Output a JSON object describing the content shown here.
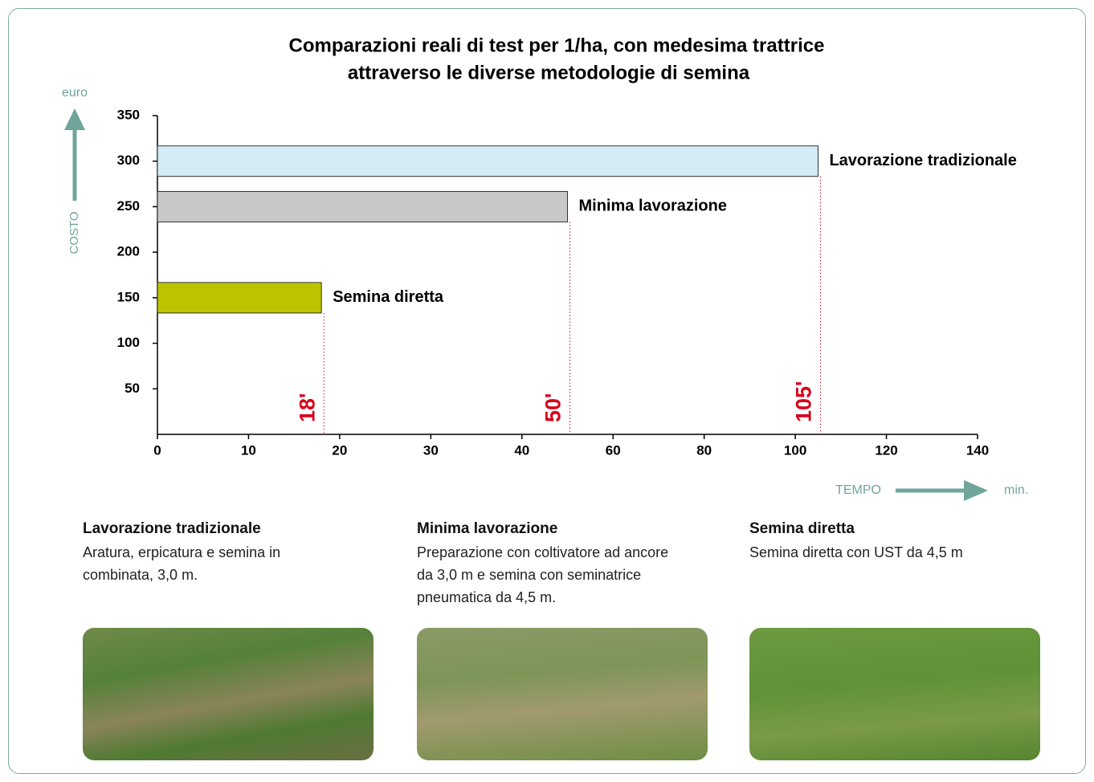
{
  "chart_data": {
    "type": "bar",
    "title": "Comparazioni reali di test per 1/ha, con medesima trattrice",
    "subtitle": "attraverso le diverse metodologie di semina",
    "y_unit": "euro",
    "y_label": "COSTO",
    "x_label": "TEMPO",
    "x_unit": "min.",
    "xlim": [
      0,
      140
    ],
    "xticks": [
      0,
      10,
      20,
      30,
      40,
      60,
      80,
      100,
      120,
      140
    ],
    "ylim": [
      0,
      350
    ],
    "yticks": [
      50,
      100,
      150,
      200,
      250,
      300,
      350
    ],
    "series": [
      {
        "name": "Lavorazione tradizionale",
        "color": "#d3ecf6",
        "values": [
          105
        ],
        "value_labels": [
          "105'"
        ],
        "y": [
          300
        ]
      },
      {
        "name": "Minima lavorazione",
        "color": "#c8c8c8",
        "values": [
          50
        ],
        "value_labels": [
          "50'"
        ],
        "y": [
          250
        ]
      },
      {
        "name": "Semina diretta",
        "color": "#bcc400",
        "values": [
          18
        ],
        "value_labels": [
          "18'"
        ],
        "y": [
          150
        ]
      }
    ]
  },
  "methods": [
    {
      "title": "Lavorazione tradizionale",
      "description": "Aratura, erpicatura e semina in combinata, 3,0 m."
    },
    {
      "title": "Minima lavorazione",
      "description": "Preparazione con coltivatore ad ancore da 3,0 m e semina con seminatrice pneumatica da 4,5 m."
    },
    {
      "title": "Semina diretta",
      "description": "Semina diretta con UST da 4,5 m"
    }
  ]
}
